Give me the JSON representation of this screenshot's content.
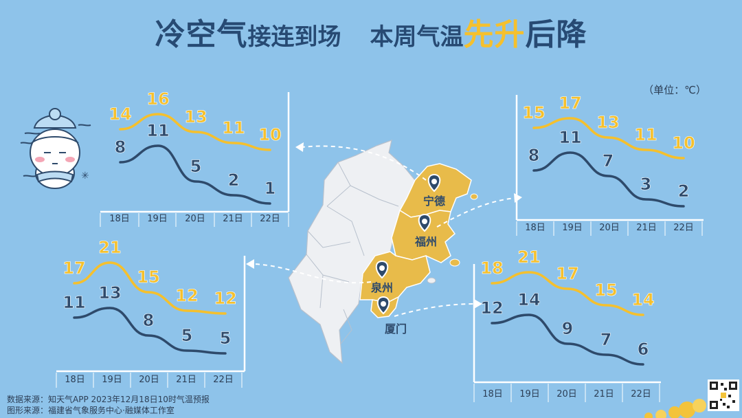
{
  "title": {
    "part1": "冷空气",
    "part2": "接连到场",
    "part3": "本周气温",
    "part4": "先升",
    "part5": "后降"
  },
  "unit_label": "（单位：℃）",
  "source_line1": "数据来源：知天气APP  2023年12月18日10时气温预报",
  "source_line2": "图形来源：福建省气象服务中心·融媒体工作室",
  "colors": {
    "background": "#8ec3ea",
    "high_line": "#f5c02d",
    "low_line": "#2e4a6b",
    "title": "#274a73",
    "highlight_region": "#e8bb4a",
    "other_region": "#eef0f3"
  },
  "cities": [
    "宁德",
    "福州",
    "泉州",
    "厦门"
  ],
  "chart_data": [
    {
      "type": "line",
      "city": "宁德",
      "categories": [
        "18日",
        "19日",
        "20日",
        "21日",
        "22日"
      ],
      "series": [
        {
          "values": [
            14,
            16,
            13,
            11,
            10
          ]
        },
        {
          "values": [
            8,
            11,
            5,
            2,
            1
          ]
        }
      ]
    },
    {
      "type": "line",
      "city": "福州",
      "categories": [
        "18日",
        "19日",
        "20日",
        "21日",
        "22日"
      ],
      "series": [
        {
          "values": [
            15,
            17,
            13,
            11,
            10
          ]
        },
        {
          "values": [
            8,
            11,
            7,
            3,
            2
          ]
        }
      ]
    },
    {
      "type": "line",
      "city": "泉州",
      "categories": [
        "18日",
        "19日",
        "20日",
        "21日",
        "22日"
      ],
      "series": [
        {
          "values": [
            17,
            21,
            15,
            12,
            12
          ]
        },
        {
          "values": [
            11,
            13,
            8,
            5,
            5
          ]
        }
      ]
    },
    {
      "type": "line",
      "city": "厦门",
      "categories": [
        "18日",
        "19日",
        "20日",
        "21日",
        "22日"
      ],
      "series": [
        {
          "values": [
            18,
            21,
            17,
            15,
            14
          ]
        },
        {
          "values": [
            12,
            14,
            9,
            7,
            6
          ]
        }
      ]
    }
  ]
}
